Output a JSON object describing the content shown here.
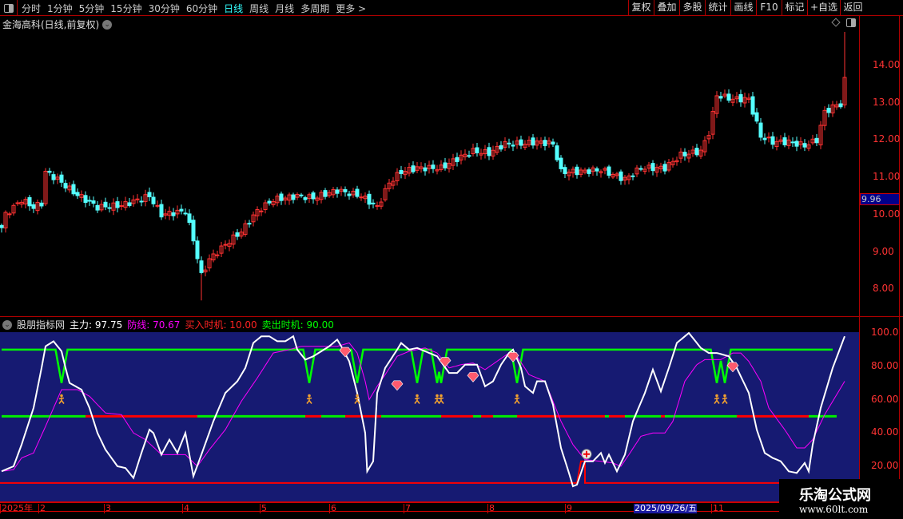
{
  "toolbar": {
    "periods": [
      "分时",
      "1分钟",
      "5分钟",
      "15分钟",
      "30分钟",
      "60分钟",
      "日线",
      "周线",
      "月线",
      "多周期",
      "更多 >"
    ],
    "active_period": "日线",
    "buttons": [
      "复权",
      "叠加",
      "多股",
      "统计",
      "画线",
      "F10",
      "标记",
      "+自选",
      "返回"
    ]
  },
  "stock_title": "金海高科(日线,前复权)",
  "price_axis": {
    "ticks": [
      "14.00",
      "13.00",
      "12.00",
      "11.00",
      "10.00",
      "9.00",
      "8.00"
    ],
    "current_price": "9.96"
  },
  "indicator": {
    "name": "股朋指标网",
    "main_label": "主力: 97.75",
    "defense_label": "防线: 70.67",
    "buy_label": "买入时机: 10.00",
    "sell_label": "卖出时机: 90.00",
    "ticks": [
      "100.0",
      "80.00",
      "60.00",
      "40.00",
      "20.00"
    ]
  },
  "time_axis": {
    "labels": [
      "2025年",
      "2",
      "3",
      "4",
      "5",
      "6",
      "7",
      "8",
      "9",
      "11"
    ],
    "highlight": "2025/09/26/五"
  },
  "watermark": {
    "name": "乐淘公式网",
    "url": "www.60lt.com"
  },
  "colors": {
    "up": "#ff3232",
    "down": "#54ffff",
    "main": "#ffffff",
    "defense": "#ff00ff",
    "sell": "#00ff00",
    "buy": "#ff0000",
    "panel": "#161a72"
  },
  "chart_data": [
    {
      "type": "candlestick",
      "ylim": [
        7.5,
        15.2
      ],
      "close_keypoints_bar_price": [
        [
          0,
          9.65
        ],
        [
          1,
          10.0
        ],
        [
          5,
          10.4
        ],
        [
          8,
          10.2
        ],
        [
          10,
          10.3
        ],
        [
          11,
          11.15
        ],
        [
          14,
          10.95
        ],
        [
          18,
          10.6
        ],
        [
          24,
          10.2
        ],
        [
          30,
          10.25
        ],
        [
          37,
          10.5
        ],
        [
          40,
          10.0
        ],
        [
          46,
          10.1
        ],
        [
          48,
          9.33
        ],
        [
          50,
          8.37
        ],
        [
          52,
          8.8
        ],
        [
          56,
          9.2
        ],
        [
          60,
          9.55
        ],
        [
          64,
          10.1
        ],
        [
          68,
          10.4
        ],
        [
          74,
          10.5
        ],
        [
          78,
          10.45
        ],
        [
          84,
          10.65
        ],
        [
          90,
          10.5
        ],
        [
          94,
          10.2
        ],
        [
          97,
          10.85
        ],
        [
          100,
          11.15
        ],
        [
          104,
          11.25
        ],
        [
          110,
          11.25
        ],
        [
          114,
          11.5
        ],
        [
          118,
          11.7
        ],
        [
          122,
          11.65
        ],
        [
          126,
          11.9
        ],
        [
          130,
          11.9
        ],
        [
          134,
          11.95
        ],
        [
          138,
          11.9
        ],
        [
          140,
          11.15
        ],
        [
          144,
          11.15
        ],
        [
          150,
          11.2
        ],
        [
          156,
          10.95
        ],
        [
          160,
          11.25
        ],
        [
          166,
          11.25
        ],
        [
          170,
          11.6
        ],
        [
          175,
          11.7
        ],
        [
          177,
          12.2
        ],
        [
          179,
          13.2
        ],
        [
          183,
          13.1
        ],
        [
          187,
          13.1
        ],
        [
          190,
          12.1
        ],
        [
          193,
          11.95
        ],
        [
          197,
          11.95
        ],
        [
          201,
          11.85
        ],
        [
          204,
          12.0
        ],
        [
          206,
          12.75
        ],
        [
          209,
          12.95
        ],
        [
          210,
          12.95
        ],
        [
          211,
          13.6
        ]
      ]
    },
    {
      "type": "line",
      "ylim": [
        0,
        100
      ],
      "series": [
        {
          "name": "主力",
          "points_bar_value": [
            [
              0,
              17
            ],
            [
              3,
              20
            ],
            [
              5,
              33
            ],
            [
              8,
              55
            ],
            [
              10,
              79
            ],
            [
              11,
              92
            ],
            [
              13,
              95
            ],
            [
              15,
              89
            ],
            [
              16,
              79
            ],
            [
              17,
              70
            ],
            [
              20,
              66
            ],
            [
              22,
              55
            ],
            [
              24,
              40
            ],
            [
              26,
              30
            ],
            [
              29,
              20
            ],
            [
              31,
              19
            ],
            [
              33,
              13
            ],
            [
              35,
              28
            ],
            [
              37,
              42
            ],
            [
              38,
              40
            ],
            [
              40,
              27
            ],
            [
              42,
              36
            ],
            [
              44,
              28
            ],
            [
              46,
              40
            ],
            [
              48,
              14
            ],
            [
              50,
              27
            ],
            [
              53,
              47
            ],
            [
              56,
              64
            ],
            [
              59,
              71
            ],
            [
              61,
              79
            ],
            [
              63,
              94
            ],
            [
              65,
              98
            ],
            [
              67,
              98
            ],
            [
              69,
              95
            ],
            [
              71,
              95
            ],
            [
              73,
              98
            ],
            [
              74,
              90
            ],
            [
              76,
              84
            ],
            [
              78,
              86
            ],
            [
              80,
              89
            ],
            [
              82,
              92
            ],
            [
              84,
              96
            ],
            [
              85,
              92
            ],
            [
              87,
              83
            ],
            [
              89,
              64
            ],
            [
              91,
              40
            ],
            [
              91.5,
              17
            ],
            [
              93,
              23
            ],
            [
              94,
              64
            ],
            [
              96,
              79
            ],
            [
              99,
              90
            ],
            [
              100,
              94
            ],
            [
              102,
              90
            ],
            [
              104,
              91
            ],
            [
              109,
              86
            ],
            [
              112,
              76
            ],
            [
              114,
              76
            ],
            [
              116,
              81
            ],
            [
              119,
              81
            ],
            [
              121,
              68
            ],
            [
              123,
              71
            ],
            [
              125,
              81
            ],
            [
              127,
              88
            ],
            [
              128,
              90
            ],
            [
              130,
              79
            ],
            [
              131,
              68
            ],
            [
              133,
              64
            ],
            [
              134,
              71
            ],
            [
              136,
              71
            ],
            [
              138,
              57
            ],
            [
              140,
              31
            ],
            [
              142,
              16
            ],
            [
              143,
              8
            ],
            [
              144,
              9
            ],
            [
              146,
              23
            ],
            [
              148,
              23
            ],
            [
              150,
              28
            ],
            [
              151,
              22
            ],
            [
              152,
              27
            ],
            [
              154,
              17
            ],
            [
              156,
              27
            ],
            [
              158,
              47
            ],
            [
              161,
              64
            ],
            [
              163,
              78
            ],
            [
              165,
              65
            ],
            [
              167,
              79
            ],
            [
              169,
              94
            ],
            [
              172,
              100
            ],
            [
              173,
              97
            ],
            [
              175,
              91
            ],
            [
              177,
              88
            ],
            [
              179,
              88
            ],
            [
              182,
              86
            ],
            [
              184,
              79
            ],
            [
              187,
              64
            ],
            [
              189,
              42
            ],
            [
              191,
              28
            ],
            [
              193,
              25
            ],
            [
              195,
              23
            ],
            [
              197,
              17
            ],
            [
              199,
              16
            ],
            [
              201,
              22
            ],
            [
              202,
              17
            ],
            [
              203,
              33
            ],
            [
              205,
              55
            ],
            [
              208,
              79
            ],
            [
              211,
              98
            ]
          ]
        },
        {
          "name": "防线",
          "points_bar_value": [
            [
              0,
              17
            ],
            [
              3,
              18
            ],
            [
              5,
              25
            ],
            [
              8,
              28
            ],
            [
              11,
              44
            ],
            [
              13,
              55
            ],
            [
              15,
              66
            ],
            [
              19,
              66
            ],
            [
              22,
              62
            ],
            [
              26,
              52
            ],
            [
              30,
              51
            ],
            [
              33,
              40
            ],
            [
              36,
              36
            ],
            [
              40,
              27
            ],
            [
              43,
              27
            ],
            [
              46,
              27
            ],
            [
              49,
              20
            ],
            [
              52,
              30
            ],
            [
              56,
              42
            ],
            [
              60,
              59
            ],
            [
              64,
              73
            ],
            [
              68,
              88
            ],
            [
              72,
              90
            ],
            [
              75,
              92
            ],
            [
              79,
              92
            ],
            [
              84,
              92
            ],
            [
              87,
              94
            ],
            [
              89,
              88
            ],
            [
              91,
              71
            ],
            [
              92,
              60
            ],
            [
              94,
              68
            ],
            [
              96,
              75
            ],
            [
              99,
              86
            ],
            [
              102,
              89
            ],
            [
              106,
              91
            ],
            [
              109,
              88
            ],
            [
              112,
              79
            ],
            [
              115,
              81
            ],
            [
              118,
              82
            ],
            [
              121,
              78
            ],
            [
              124,
              83
            ],
            [
              127,
              88
            ],
            [
              129,
              86
            ],
            [
              132,
              75
            ],
            [
              136,
              71
            ],
            [
              138,
              59
            ],
            [
              140,
              47
            ],
            [
              143,
              33
            ],
            [
              146,
              24
            ],
            [
              150,
              23
            ],
            [
              153,
              22
            ],
            [
              155,
              20
            ],
            [
              157,
              27
            ],
            [
              160,
              38
            ],
            [
              163,
              40
            ],
            [
              166,
              40
            ],
            [
              168,
              47
            ],
            [
              171,
              71
            ],
            [
              174,
              81
            ],
            [
              176,
              84
            ],
            [
              180,
              84
            ],
            [
              183,
              88
            ],
            [
              185,
              88
            ],
            [
              187,
              83
            ],
            [
              190,
              71
            ],
            [
              192,
              55
            ],
            [
              196,
              42
            ],
            [
              199,
              31
            ],
            [
              201,
              31
            ],
            [
              203,
              36
            ],
            [
              206,
              51
            ],
            [
              211,
              71
            ]
          ]
        }
      ],
      "sell_line_level": 90,
      "buy_line_level": 10,
      "mid_line_level": 50,
      "buy_signal_bars": [
        15,
        77,
        89,
        104,
        109,
        110,
        129,
        179,
        181
      ],
      "gem_signals_bar_value": [
        [
          86,
          88
        ],
        [
          99,
          68
        ],
        [
          111,
          82
        ],
        [
          118,
          73
        ],
        [
          128,
          85
        ],
        [
          183,
          79
        ]
      ],
      "plus_signal_bar_value": [
        146,
        23
      ],
      "mid_line_segments_bar_color": [
        [
          0,
          21,
          "green"
        ],
        [
          21,
          46,
          "red"
        ],
        [
          46,
          49,
          "red"
        ],
        [
          49,
          76,
          "green"
        ],
        [
          76,
          80,
          "red"
        ],
        [
          80,
          86,
          "green"
        ],
        [
          86,
          95,
          "red"
        ],
        [
          95,
          110,
          "green"
        ],
        [
          110,
          118,
          "red"
        ],
        [
          118,
          120,
          "green"
        ],
        [
          120,
          123,
          "red"
        ],
        [
          123,
          129,
          "green"
        ],
        [
          129,
          151,
          "red"
        ],
        [
          151,
          152,
          "green"
        ],
        [
          152,
          156,
          "red"
        ],
        [
          156,
          165,
          "green"
        ],
        [
          165,
          166,
          "red"
        ],
        [
          166,
          184,
          "green"
        ],
        [
          184,
          202,
          "red"
        ],
        [
          202,
          209,
          "green"
        ]
      ]
    }
  ]
}
